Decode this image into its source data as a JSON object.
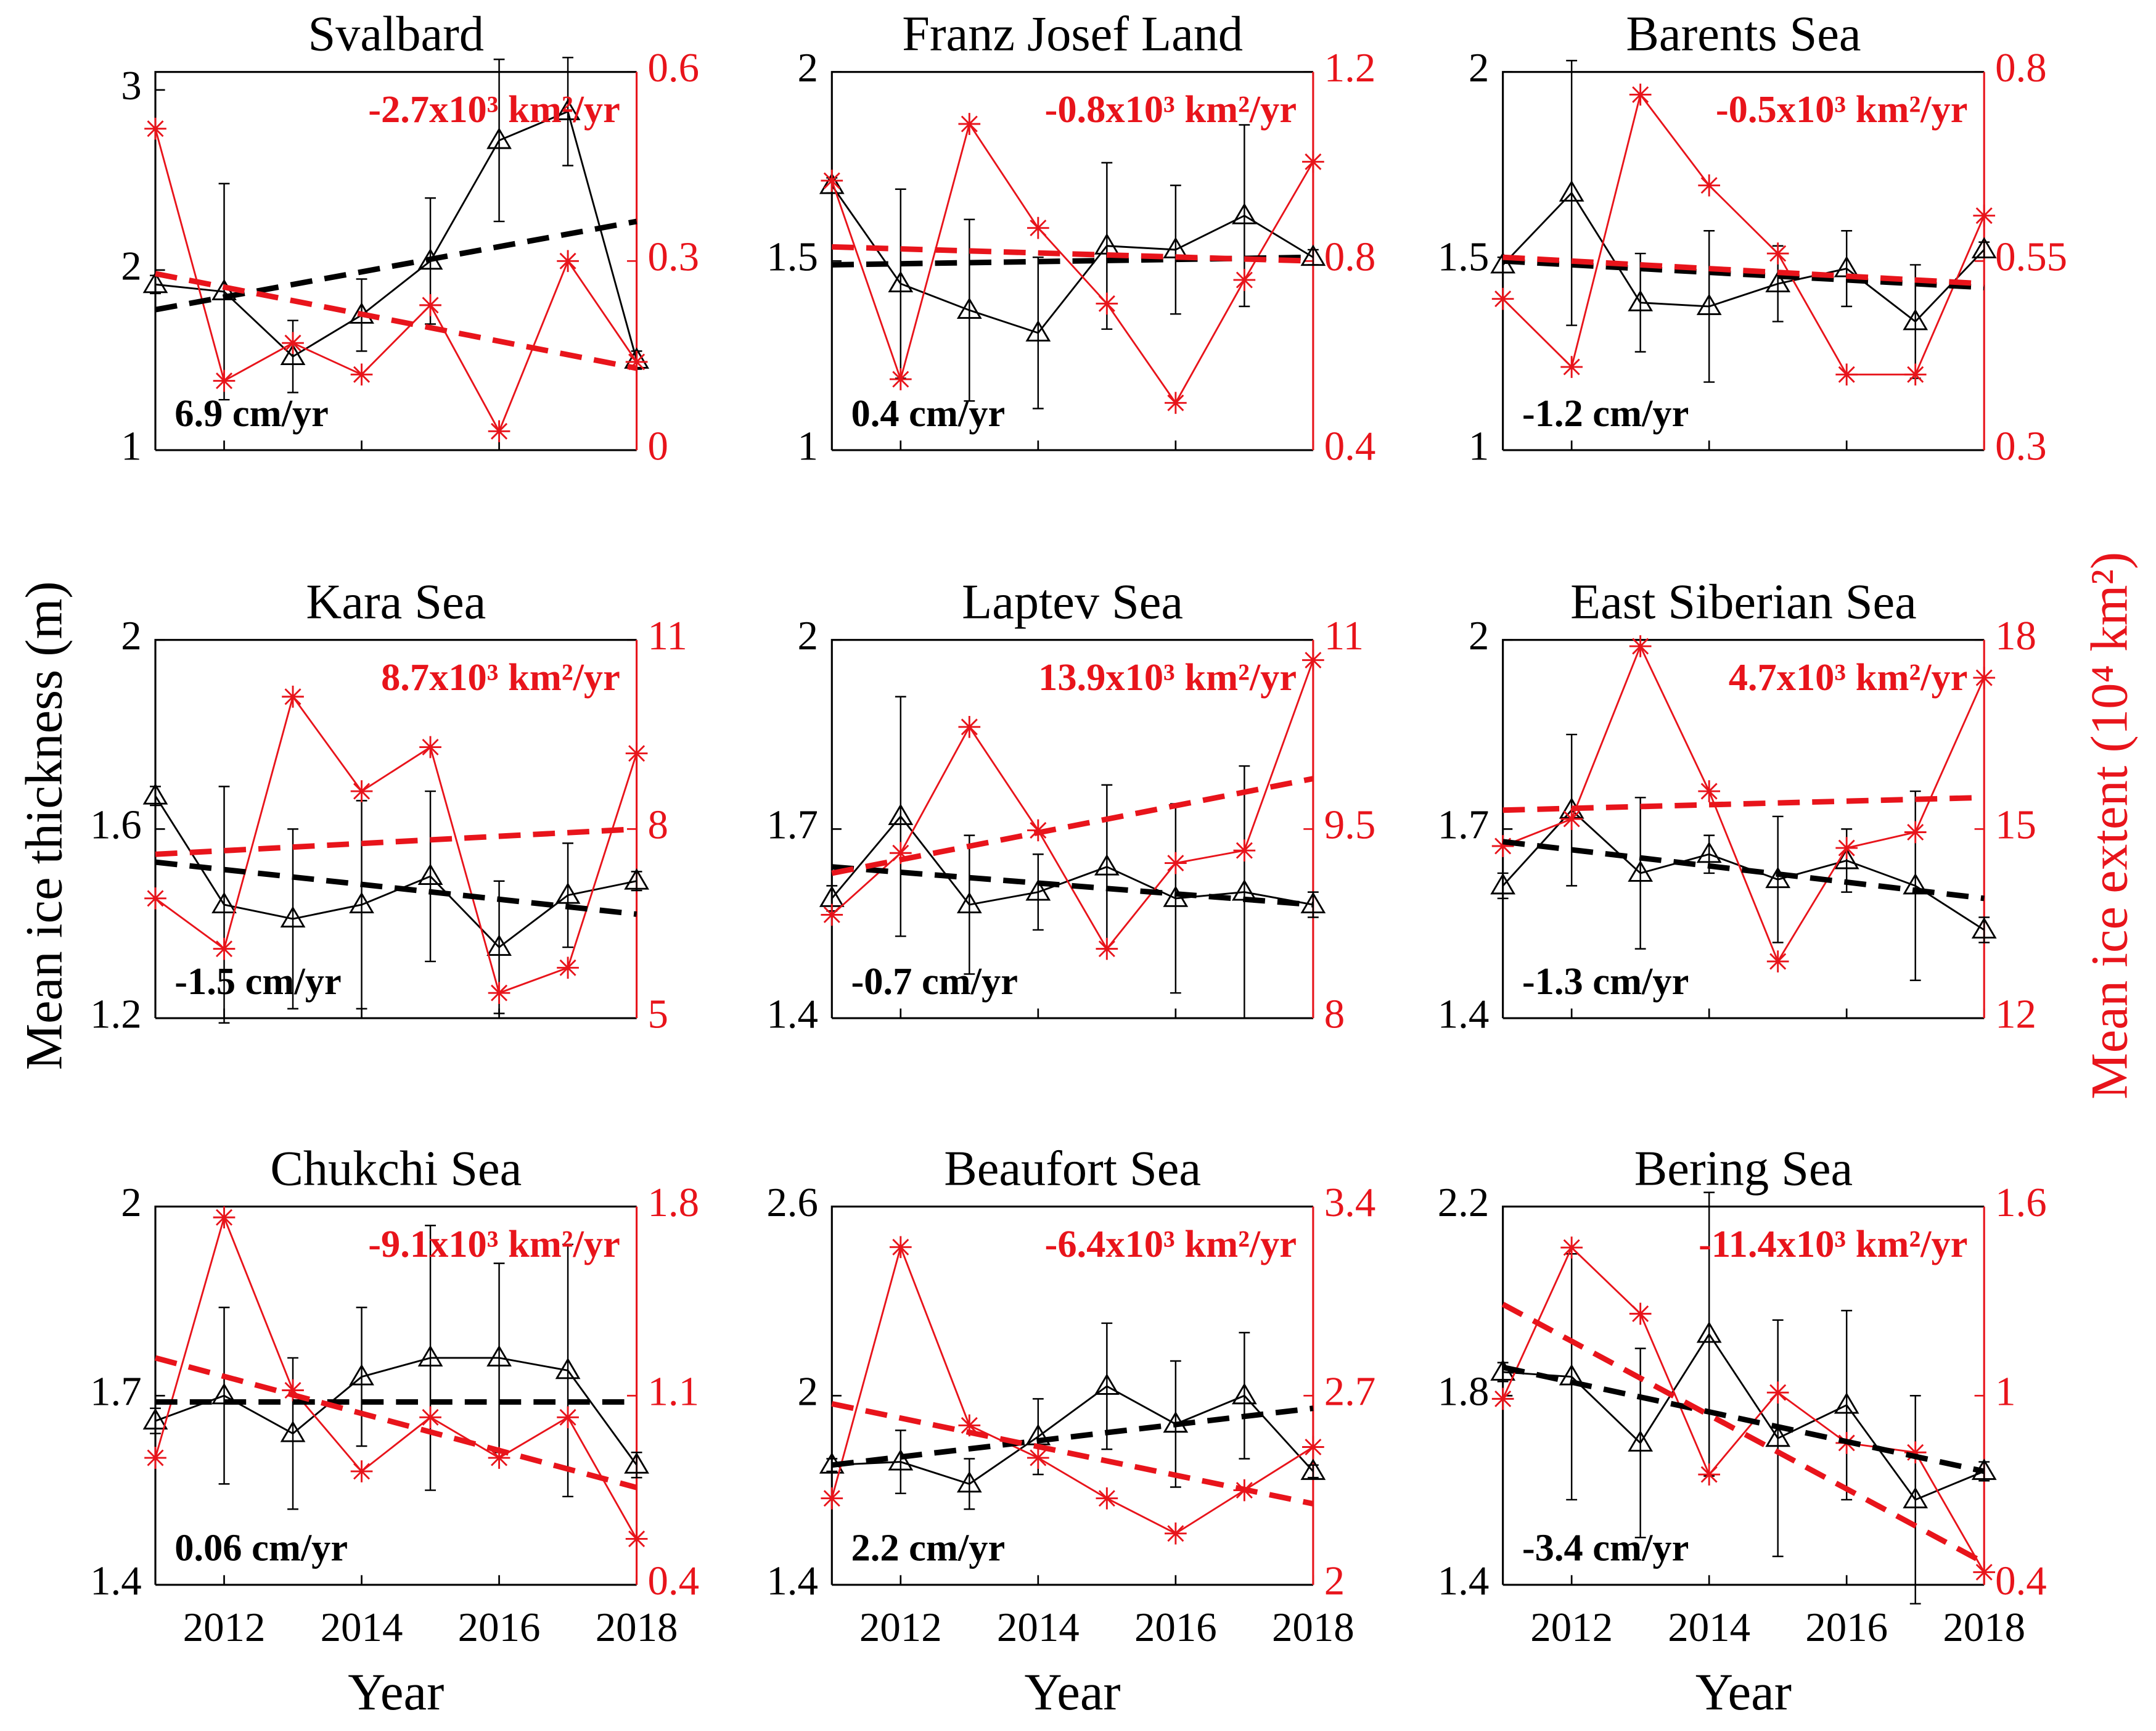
{
  "ylabel": "Mean ice thickness (m)",
  "y2label": "Mean ice extent (10⁴ km²)",
  "xlabel": "Year",
  "chart_data": [
    {
      "type": "line",
      "title": "Svalbard",
      "x": [
        2011,
        2012,
        2013,
        2014,
        2015,
        2016,
        2017,
        2018
      ],
      "xlim": [
        2011,
        2018
      ],
      "xticks": [
        2012,
        2014,
        2016,
        2018
      ],
      "ylim": [
        1,
        3.1
      ],
      "yticks": [
        1,
        2,
        3
      ],
      "y2lim": [
        0,
        0.6
      ],
      "y2ticks": [
        0,
        0.3,
        0.6
      ],
      "thickness_rate": "6.9 cm/yr",
      "extent_rate": "-2.7x10³ km²/yr",
      "series": [
        {
          "color": "#000000",
          "marker": "triangle",
          "values": [
            1.92,
            1.88,
            1.52,
            1.75,
            2.05,
            2.72,
            2.88,
            1.5
          ],
          "errors": [
            0.05,
            0.6,
            0.2,
            0.2,
            0.35,
            0.45,
            0.3,
            0.05
          ]
        },
        {
          "color": "#e8141b",
          "marker": "star",
          "axis": "y2",
          "values": [
            0.51,
            0.11,
            0.17,
            0.12,
            0.23,
            0.03,
            0.3,
            0.14
          ]
        },
        {
          "color": "#000000",
          "dash": true,
          "x": [
            2011,
            2018
          ],
          "values": [
            1.78,
            2.27
          ]
        },
        {
          "color": "#e8141b",
          "dash": true,
          "axis": "y2",
          "x": [
            2011,
            2018
          ],
          "values": [
            0.28,
            0.13
          ]
        }
      ]
    },
    {
      "type": "line",
      "title": "Franz Josef Land",
      "x": [
        2011,
        2012,
        2013,
        2014,
        2015,
        2016,
        2017,
        2018
      ],
      "xlim": [
        2011,
        2018
      ],
      "xticks": [
        2012,
        2014,
        2016,
        2018
      ],
      "ylim": [
        1,
        2
      ],
      "yticks": [
        1,
        1.5,
        2
      ],
      "y2lim": [
        0.4,
        1.2
      ],
      "y2ticks": [
        0.4,
        0.8,
        1.2
      ],
      "thickness_rate": "0.4 cm/yr",
      "extent_rate": "-0.8x10³ km²/yr",
      "series": [
        {
          "color": "#000000",
          "marker": "triangle",
          "values": [
            1.7,
            1.44,
            1.37,
            1.31,
            1.54,
            1.53,
            1.62,
            1.51
          ],
          "errors": [
            0.02,
            0.25,
            0.24,
            0.2,
            0.22,
            0.17,
            0.24,
            0.02
          ]
        },
        {
          "color": "#e8141b",
          "marker": "star",
          "axis": "y2",
          "values": [
            0.97,
            0.55,
            1.09,
            0.87,
            0.71,
            0.5,
            0.76,
            1.01
          ]
        },
        {
          "color": "#000000",
          "dash": true,
          "x": [
            2011,
            2018
          ],
          "values": [
            1.49,
            1.51
          ]
        },
        {
          "color": "#e8141b",
          "dash": true,
          "axis": "y2",
          "x": [
            2011,
            2018
          ],
          "values": [
            0.83,
            0.8
          ]
        }
      ]
    },
    {
      "type": "line",
      "title": "Barents Sea",
      "x": [
        2011,
        2012,
        2013,
        2014,
        2015,
        2016,
        2017,
        2018
      ],
      "xlim": [
        2011,
        2018
      ],
      "xticks": [
        2012,
        2014,
        2016,
        2018
      ],
      "ylim": [
        1,
        2
      ],
      "yticks": [
        1,
        1.5,
        2
      ],
      "y2lim": [
        0.3,
        0.8
      ],
      "y2ticks": [
        0.3,
        0.55,
        0.8
      ],
      "thickness_rate": "-1.2 cm/yr",
      "extent_rate": "-0.5x10³ km²/yr",
      "series": [
        {
          "color": "#000000",
          "marker": "triangle",
          "values": [
            1.49,
            1.68,
            1.39,
            1.38,
            1.44,
            1.48,
            1.34,
            1.53
          ],
          "errors": [
            0.02,
            0.35,
            0.13,
            0.2,
            0.1,
            0.1,
            0.15,
            0.02
          ]
        },
        {
          "color": "#e8141b",
          "marker": "star",
          "axis": "y2",
          "values": [
            0.5,
            0.41,
            0.77,
            0.65,
            0.56,
            0.4,
            0.4,
            0.61
          ]
        },
        {
          "color": "#000000",
          "dash": true,
          "x": [
            2011,
            2018
          ],
          "values": [
            1.5,
            1.43
          ]
        },
        {
          "color": "#e8141b",
          "dash": true,
          "axis": "y2",
          "x": [
            2011,
            2018
          ],
          "values": [
            0.555,
            0.52
          ]
        }
      ]
    },
    {
      "type": "line",
      "title": "Kara Sea",
      "x": [
        2011,
        2012,
        2013,
        2014,
        2015,
        2016,
        2017,
        2018
      ],
      "xlim": [
        2011,
        2018
      ],
      "xticks": [
        2012,
        2014,
        2016,
        2018
      ],
      "ylim": [
        1.2,
        2
      ],
      "yticks": [
        1.2,
        1.6,
        2
      ],
      "y2lim": [
        5,
        11
      ],
      "y2ticks": [
        5,
        8,
        11
      ],
      "thickness_rate": "-1.5 cm/yr",
      "extent_rate": "8.7x10³ km²/yr",
      "series": [
        {
          "color": "#000000",
          "marker": "triangle",
          "values": [
            1.67,
            1.44,
            1.41,
            1.44,
            1.5,
            1.35,
            1.46,
            1.49
          ],
          "errors": [
            0.02,
            0.25,
            0.19,
            0.22,
            0.18,
            0.14,
            0.11,
            0.02
          ]
        },
        {
          "color": "#e8141b",
          "marker": "star",
          "axis": "y2",
          "values": [
            6.9,
            6.1,
            10.1,
            8.6,
            9.3,
            5.4,
            5.8,
            9.2
          ]
        },
        {
          "color": "#000000",
          "dash": true,
          "x": [
            2011,
            2018
          ],
          "values": [
            1.53,
            1.42
          ]
        },
        {
          "color": "#e8141b",
          "dash": true,
          "axis": "y2",
          "x": [
            2011,
            2018
          ],
          "values": [
            7.6,
            8.0
          ]
        }
      ]
    },
    {
      "type": "line",
      "title": "Laptev Sea",
      "x": [
        2011,
        2012,
        2013,
        2014,
        2015,
        2016,
        2017,
        2018
      ],
      "xlim": [
        2011,
        2018
      ],
      "xticks": [
        2012,
        2014,
        2016,
        2018
      ],
      "ylim": [
        1.4,
        2
      ],
      "yticks": [
        1.4,
        1.7,
        2
      ],
      "y2lim": [
        8,
        11
      ],
      "y2ticks": [
        8,
        9.5,
        11
      ],
      "thickness_rate": "-0.7 cm/yr",
      "extent_rate": "13.9x10³ km²/yr",
      "series": [
        {
          "color": "#000000",
          "marker": "triangle",
          "values": [
            1.59,
            1.72,
            1.58,
            1.6,
            1.64,
            1.59,
            1.6,
            1.58
          ],
          "errors": [
            0.02,
            0.19,
            0.11,
            0.06,
            0.13,
            0.15,
            0.2,
            0.02
          ]
        },
        {
          "color": "#e8141b",
          "marker": "star",
          "axis": "y2",
          "values": [
            8.82,
            9.31,
            10.31,
            9.49,
            8.55,
            9.23,
            9.33,
            10.84
          ]
        },
        {
          "color": "#000000",
          "dash": true,
          "x": [
            2011,
            2018
          ],
          "values": [
            1.64,
            1.58
          ]
        },
        {
          "color": "#e8141b",
          "dash": true,
          "axis": "y2",
          "x": [
            2011,
            2018
          ],
          "values": [
            9.15,
            9.9
          ]
        }
      ]
    },
    {
      "type": "line",
      "title": "East Siberian Sea",
      "x": [
        2011,
        2012,
        2013,
        2014,
        2015,
        2016,
        2017,
        2018
      ],
      "xlim": [
        2011,
        2018
      ],
      "xticks": [
        2012,
        2014,
        2016,
        2018
      ],
      "ylim": [
        1.4,
        2
      ],
      "yticks": [
        1.4,
        1.7,
        2
      ],
      "y2lim": [
        12,
        18
      ],
      "y2ticks": [
        12,
        15,
        18
      ],
      "thickness_rate": "-1.3 cm/yr",
      "extent_rate": "4.7x10³ km²/yr",
      "series": [
        {
          "color": "#000000",
          "marker": "triangle",
          "values": [
            1.61,
            1.73,
            1.63,
            1.66,
            1.62,
            1.65,
            1.61,
            1.54
          ],
          "errors": [
            0.02,
            0.12,
            0.12,
            0.03,
            0.1,
            0.05,
            0.15,
            0.02
          ]
        },
        {
          "color": "#e8141b",
          "marker": "star",
          "axis": "y2",
          "values": [
            14.73,
            15.16,
            17.9,
            15.6,
            12.9,
            14.7,
            14.95,
            17.4
          ]
        },
        {
          "color": "#000000",
          "dash": true,
          "x": [
            2011,
            2018
          ],
          "values": [
            1.68,
            1.59
          ]
        },
        {
          "color": "#e8141b",
          "dash": true,
          "axis": "y2",
          "x": [
            2011,
            2018
          ],
          "values": [
            15.3,
            15.5
          ]
        }
      ]
    },
    {
      "type": "line",
      "title": "Chukchi Sea",
      "x": [
        2011,
        2012,
        2013,
        2014,
        2015,
        2016,
        2017,
        2018
      ],
      "xlim": [
        2011,
        2018
      ],
      "xticks": [
        2012,
        2014,
        2016,
        2018
      ],
      "ylim": [
        1.4,
        2
      ],
      "yticks": [
        1.4,
        1.7,
        2
      ],
      "y2lim": [
        0.4,
        1.8
      ],
      "y2ticks": [
        0.4,
        1.1,
        1.8
      ],
      "thickness_rate": "0.06 cm/yr",
      "extent_rate": "-9.1x10³ km²/yr",
      "series": [
        {
          "color": "#000000",
          "marker": "triangle",
          "values": [
            1.66,
            1.7,
            1.64,
            1.73,
            1.76,
            1.76,
            1.74,
            1.59
          ],
          "errors": [
            0.02,
            0.14,
            0.12,
            0.11,
            0.21,
            0.15,
            0.2,
            0.02
          ]
        },
        {
          "color": "#e8141b",
          "marker": "star",
          "axis": "y2",
          "values": [
            0.87,
            1.76,
            1.12,
            0.82,
            1.02,
            0.87,
            1.02,
            0.57
          ]
        },
        {
          "color": "#000000",
          "dash": true,
          "x": [
            2011,
            2018
          ],
          "values": [
            1.69,
            1.69
          ]
        },
        {
          "color": "#e8141b",
          "dash": true,
          "axis": "y2",
          "x": [
            2011,
            2018
          ],
          "values": [
            1.24,
            0.76
          ]
        }
      ]
    },
    {
      "type": "line",
      "title": "Beaufort Sea",
      "x": [
        2011,
        2012,
        2013,
        2014,
        2015,
        2016,
        2017,
        2018
      ],
      "xlim": [
        2011,
        2018
      ],
      "xticks": [
        2012,
        2014,
        2016,
        2018
      ],
      "ylim": [
        1.4,
        2.6
      ],
      "yticks": [
        1.4,
        2,
        2.6
      ],
      "y2lim": [
        2,
        3.4
      ],
      "y2ticks": [
        2,
        2.7,
        3.4
      ],
      "thickness_rate": "2.2 cm/yr",
      "extent_rate": "-6.4x10³ km²/yr",
      "series": [
        {
          "color": "#000000",
          "marker": "triangle",
          "values": [
            1.78,
            1.79,
            1.72,
            1.87,
            2.03,
            1.91,
            2.0,
            1.76
          ],
          "errors": [
            0.02,
            0.1,
            0.08,
            0.12,
            0.2,
            0.2,
            0.2,
            0.02
          ]
        },
        {
          "color": "#e8141b",
          "marker": "star",
          "axis": "y2",
          "values": [
            2.32,
            3.25,
            2.59,
            2.47,
            2.32,
            2.19,
            2.35,
            2.51
          ]
        },
        {
          "color": "#000000",
          "dash": true,
          "x": [
            2011,
            2018
          ],
          "values": [
            1.78,
            1.96
          ]
        },
        {
          "color": "#e8141b",
          "dash": true,
          "axis": "y2",
          "x": [
            2011,
            2018
          ],
          "values": [
            2.67,
            2.3
          ]
        }
      ]
    },
    {
      "type": "line",
      "title": "Bering Sea",
      "x": [
        2011,
        2012,
        2013,
        2014,
        2015,
        2016,
        2017,
        2018
      ],
      "xlim": [
        2011,
        2018
      ],
      "xticks": [
        2012,
        2014,
        2016,
        2018
      ],
      "ylim": [
        1.4,
        2.2
      ],
      "yticks": [
        1.4,
        1.8,
        2.2
      ],
      "y2lim": [
        0.4,
        1.6
      ],
      "y2ticks": [
        0.4,
        1,
        1.6
      ],
      "thickness_rate": "-3.4 cm/yr",
      "extent_rate": "-11.4x10³ km²/yr",
      "series": [
        {
          "color": "#000000",
          "marker": "triangle",
          "values": [
            1.85,
            1.84,
            1.7,
            1.93,
            1.71,
            1.78,
            1.58,
            1.64
          ],
          "errors": [
            0.02,
            0.26,
            0.2,
            0.3,
            0.25,
            0.2,
            0.22,
            0.02
          ]
        },
        {
          "color": "#e8141b",
          "marker": "star",
          "axis": "y2",
          "values": [
            0.99,
            1.47,
            1.26,
            0.75,
            1.01,
            0.85,
            0.82,
            0.44
          ]
        },
        {
          "color": "#000000",
          "dash": true,
          "x": [
            2011,
            2018
          ],
          "values": [
            1.86,
            1.64
          ]
        },
        {
          "color": "#e8141b",
          "dash": true,
          "axis": "y2",
          "x": [
            2011,
            2018
          ],
          "values": [
            1.29,
            0.47
          ]
        }
      ]
    }
  ]
}
